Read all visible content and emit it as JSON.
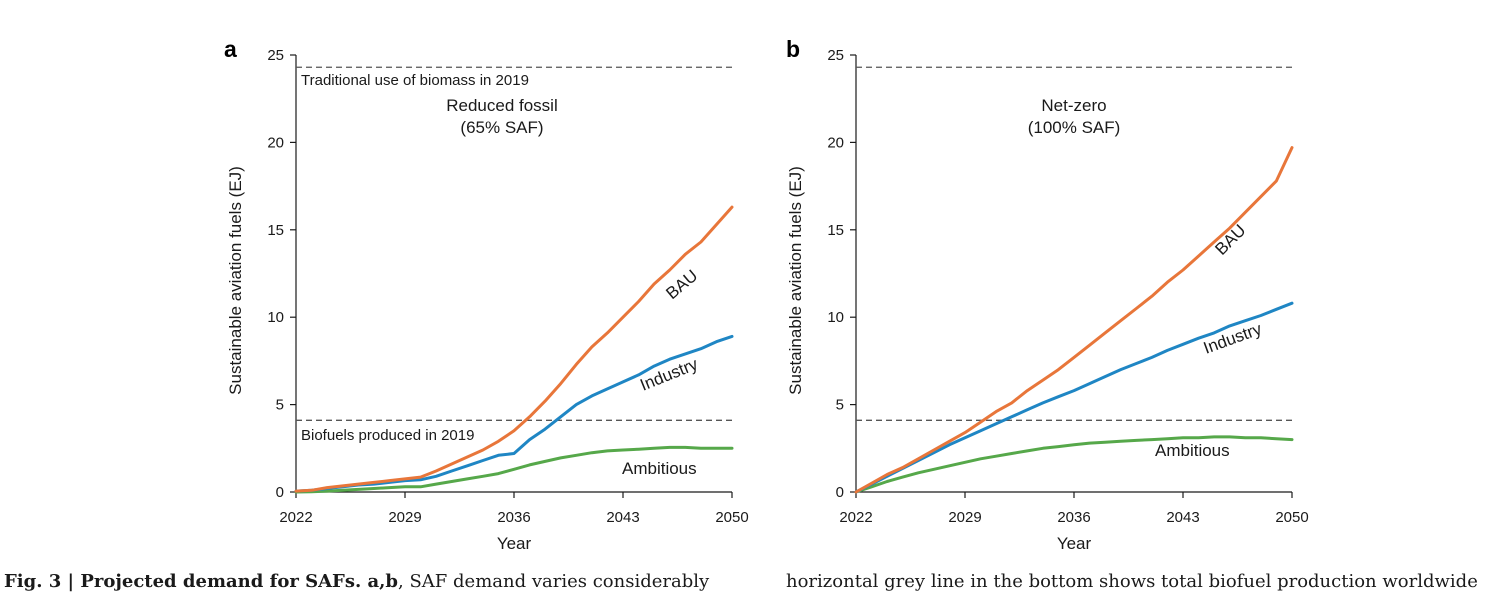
{
  "colors": {
    "BAU": "#E8763A",
    "Industry": "#1F86C4",
    "Ambitious": "#56A84A",
    "reference": "#555555"
  },
  "caption": {
    "fig_label": "Fig. 3 | Projected demand for SAFs. a,b",
    "left_rest": ", SAF demand varies considerably",
    "right": "horizontal grey line in the bottom shows total biofuel production worldwide"
  },
  "chart_data": [
    {
      "panel": "a",
      "type": "line",
      "scenario_line1": "Reduced fossil",
      "scenario_line2": "(65% SAF)",
      "xlabel": "Year",
      "ylabel": "Sustainable aviation fuels (EJ)",
      "xlim": [
        2022,
        2050
      ],
      "ylim": [
        0,
        25
      ],
      "xticks": [
        2022,
        2029,
        2036,
        2043,
        2050
      ],
      "yticks": [
        0,
        5,
        10,
        15,
        20,
        25
      ],
      "reference_lines": [
        {
          "y": 24.3,
          "label": "Traditional use of biomass in 2019"
        },
        {
          "y": 4.1,
          "label": "Biofuels produced in 2019"
        }
      ],
      "x": [
        2022,
        2023,
        2024,
        2025,
        2026,
        2027,
        2028,
        2029,
        2030,
        2031,
        2032,
        2033,
        2034,
        2035,
        2036,
        2037,
        2038,
        2039,
        2040,
        2041,
        2042,
        2043,
        2044,
        2045,
        2046,
        2047,
        2048,
        2049,
        2050
      ],
      "series": [
        {
          "name": "BAU",
          "values": [
            0.05,
            0.1,
            0.25,
            0.35,
            0.45,
            0.55,
            0.65,
            0.75,
            0.85,
            1.2,
            1.6,
            2.0,
            2.4,
            2.9,
            3.5,
            4.3,
            5.2,
            6.2,
            7.3,
            8.3,
            9.1,
            10.0,
            10.9,
            11.9,
            12.7,
            13.6,
            14.3,
            15.3,
            16.3
          ]
        },
        {
          "name": "Industry",
          "values": [
            0.05,
            0.1,
            0.2,
            0.3,
            0.4,
            0.45,
            0.55,
            0.65,
            0.7,
            0.9,
            1.2,
            1.5,
            1.8,
            2.1,
            2.2,
            3.0,
            3.6,
            4.3,
            5.0,
            5.5,
            5.9,
            6.3,
            6.7,
            7.2,
            7.6,
            7.9,
            8.2,
            8.6,
            8.9
          ]
        },
        {
          "name": "Ambitious",
          "values": [
            0.0,
            0.02,
            0.05,
            0.1,
            0.15,
            0.2,
            0.25,
            0.3,
            0.3,
            0.45,
            0.6,
            0.75,
            0.9,
            1.05,
            1.3,
            1.55,
            1.75,
            1.95,
            2.1,
            2.25,
            2.35,
            2.4,
            2.45,
            2.5,
            2.55,
            2.55,
            2.5,
            2.5,
            2.5
          ]
        }
      ]
    },
    {
      "panel": "b",
      "type": "line",
      "scenario_line1": "Net-zero",
      "scenario_line2": "(100% SAF)",
      "xlabel": "Year",
      "ylabel": "Sustainable aviation fuels (EJ)",
      "xlim": [
        2022,
        2050
      ],
      "ylim": [
        0,
        25
      ],
      "xticks": [
        2022,
        2029,
        2036,
        2043,
        2050
      ],
      "yticks": [
        0,
        5,
        10,
        15,
        20,
        25
      ],
      "reference_lines": [
        {
          "y": 24.3,
          "label": ""
        },
        {
          "y": 4.1,
          "label": ""
        }
      ],
      "x": [
        2022,
        2023,
        2024,
        2025,
        2026,
        2027,
        2028,
        2029,
        2030,
        2031,
        2032,
        2033,
        2034,
        2035,
        2036,
        2037,
        2038,
        2039,
        2040,
        2041,
        2042,
        2043,
        2044,
        2045,
        2046,
        2047,
        2048,
        2049,
        2050
      ],
      "series": [
        {
          "name": "BAU",
          "values": [
            0.0,
            0.5,
            1.0,
            1.4,
            1.9,
            2.4,
            2.9,
            3.4,
            4.0,
            4.6,
            5.1,
            5.8,
            6.4,
            7.0,
            7.7,
            8.4,
            9.1,
            9.8,
            10.5,
            11.2,
            12.0,
            12.7,
            13.5,
            14.3,
            15.1,
            16.0,
            16.9,
            17.8,
            19.7
          ]
        },
        {
          "name": "Industry",
          "values": [
            0.0,
            0.45,
            0.9,
            1.35,
            1.8,
            2.25,
            2.7,
            3.1,
            3.5,
            3.9,
            4.3,
            4.7,
            5.1,
            5.45,
            5.8,
            6.2,
            6.6,
            7.0,
            7.35,
            7.7,
            8.1,
            8.45,
            8.8,
            9.1,
            9.5,
            9.8,
            10.1,
            10.45,
            10.8
          ]
        },
        {
          "name": "Ambitious",
          "values": [
            0.0,
            0.3,
            0.6,
            0.85,
            1.1,
            1.3,
            1.5,
            1.7,
            1.9,
            2.05,
            2.2,
            2.35,
            2.5,
            2.6,
            2.7,
            2.8,
            2.85,
            2.9,
            2.95,
            3.0,
            3.05,
            3.1,
            3.1,
            3.15,
            3.15,
            3.1,
            3.1,
            3.05,
            3.0
          ]
        }
      ]
    }
  ]
}
